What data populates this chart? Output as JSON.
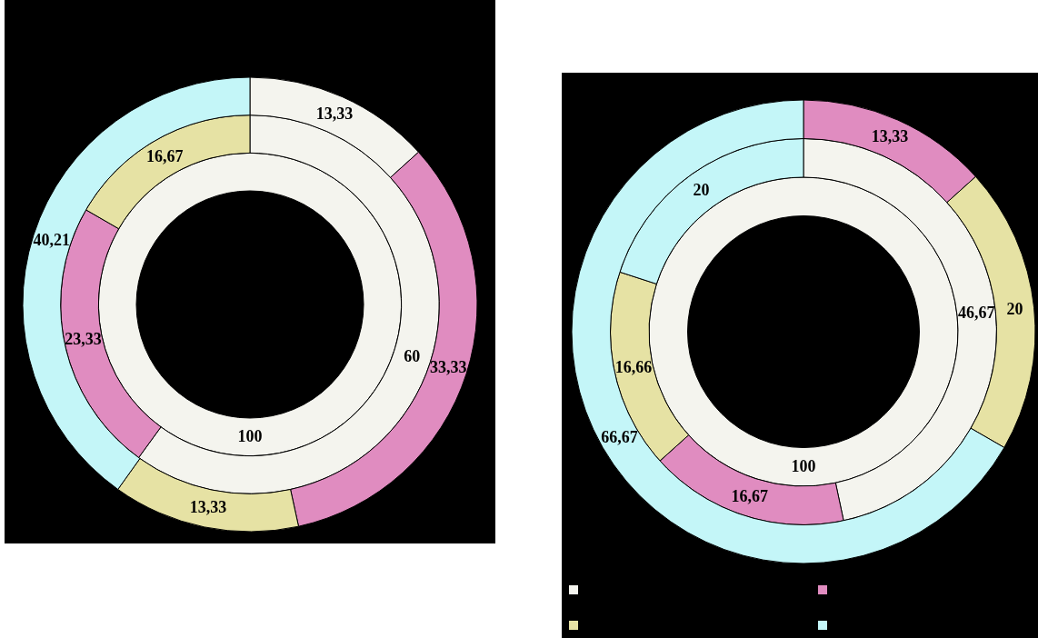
{
  "chart_data": [
    {
      "type": "donut",
      "categories": [
        null,
        null,
        null,
        null
      ],
      "colors": [
        "#f4f4ee",
        "#e08cc0",
        "#e6e2a4",
        "#c4f6f8"
      ],
      "series": [
        {
          "values": [
            100,
            null,
            null,
            null
          ],
          "value_labels": [
            "100",
            null,
            null,
            null
          ]
        },
        {
          "values": [
            60,
            23.33,
            16.67,
            null
          ],
          "value_labels": [
            "60",
            "23,33",
            "16,67",
            null
          ]
        },
        {
          "values": [
            13.33,
            33.33,
            13.33,
            40.21
          ],
          "value_labels": [
            "13,33",
            "33,33",
            "13,33",
            "40,21"
          ]
        }
      ]
    },
    {
      "type": "donut",
      "categories": [
        null,
        null,
        null,
        null
      ],
      "colors": [
        "#f4f4ee",
        "#e08cc0",
        "#e6e2a4",
        "#c4f6f8"
      ],
      "series": [
        {
          "values": [
            100,
            null,
            null,
            null
          ],
          "value_labels": [
            "100",
            null,
            null,
            null
          ]
        },
        {
          "values": [
            46.67,
            16.67,
            16.66,
            20
          ],
          "value_labels": [
            "46,67",
            "16,67",
            "16,66",
            "20"
          ]
        },
        {
          "values": [
            null,
            13.33,
            20,
            66.67
          ],
          "value_labels": [
            null,
            "13,33",
            "20",
            "66,67"
          ]
        }
      ]
    }
  ]
}
